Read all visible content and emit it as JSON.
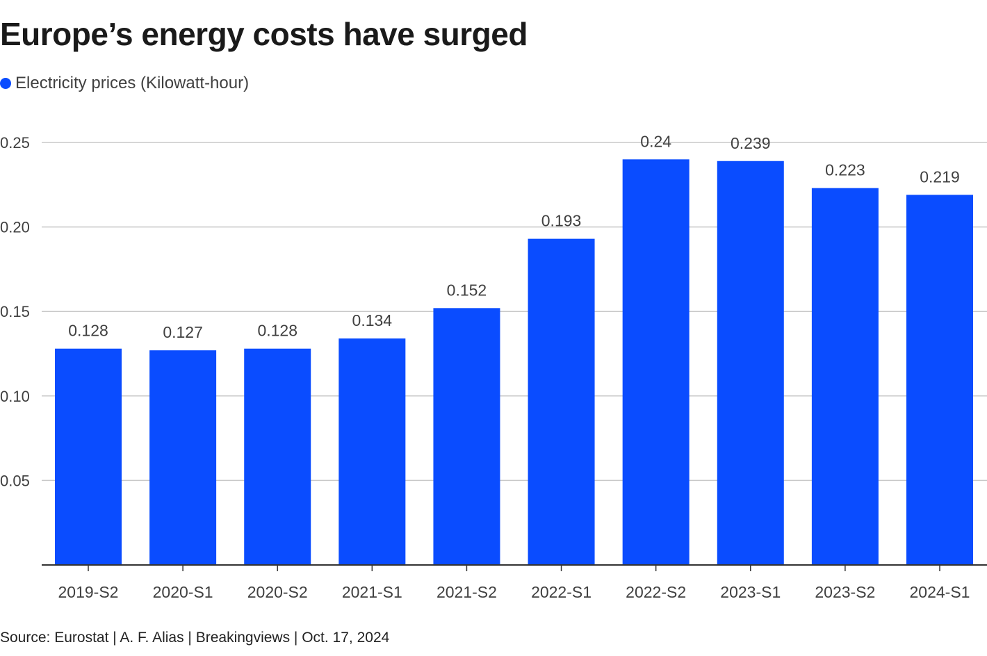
{
  "colors": {
    "bar": "#0a4cff",
    "grid": "#c8c8c8",
    "axis": "#333333",
    "text": "#404040"
  },
  "chart_data": {
    "type": "bar",
    "title": "Europe’s energy costs have surged",
    "legend": [
      "Electricity prices (Kilowatt-hour)"
    ],
    "legend_position": "top-left",
    "categories": [
      "2019-S2",
      "2020-S1",
      "2020-S2",
      "2021-S1",
      "2021-S2",
      "2022-S1",
      "2022-S2",
      "2023-S1",
      "2023-S2",
      "2024-S1"
    ],
    "series": [
      {
        "name": "Electricity prices (Kilowatt-hour)",
        "values": [
          0.128,
          0.127,
          0.128,
          0.134,
          0.152,
          0.193,
          0.24,
          0.239,
          0.223,
          0.219
        ],
        "labels": [
          "0.128",
          "0.127",
          "0.128",
          "0.134",
          "0.152",
          "0.193",
          "0.24",
          "0.239",
          "0.223",
          "0.219"
        ]
      }
    ],
    "ylim": [
      0,
      0.25
    ],
    "yticks": [
      0.05,
      0.1,
      0.15,
      0.2,
      0.25
    ],
    "ytick_labels": [
      "0.05",
      "0.10",
      "0.15",
      "0.20",
      "0.25"
    ],
    "xlabel": "",
    "ylabel": "",
    "grid": true
  },
  "source": "Source: Eurostat | A. F. Alias | Breakingviews | Oct. 17, 2024"
}
